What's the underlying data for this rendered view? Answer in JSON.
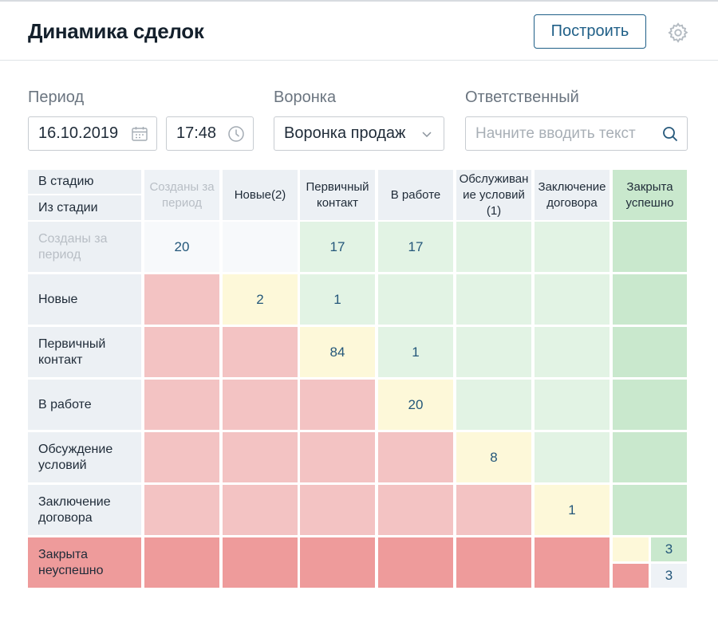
{
  "header": {
    "title": "Динамика сделок",
    "build_label": "Построить"
  },
  "filters": {
    "period_label": "Период",
    "date_value": "16.10.2019",
    "time_value": "17:48",
    "funnel_label": "Воронка",
    "funnel_value": "Воронка продаж",
    "responsible_label": "Ответственный",
    "responsible_placeholder": "Начните вводить текст"
  },
  "matrix": {
    "corner_top": "В стадию",
    "corner_bottom": "Из стадии",
    "columns": [
      "Созданы за период",
      "Новые(2)",
      "Первичный контакт",
      "В работе",
      "Обслуживан ие условий (1)",
      "Заключение договора",
      "Закрыта успешно"
    ],
    "rows": [
      {
        "label": "Созданы за период",
        "values": [
          "20",
          "",
          "17",
          "17",
          "",
          "",
          ""
        ]
      },
      {
        "label": "Новые",
        "values": [
          "",
          "2",
          "1",
          "",
          "",
          "",
          ""
        ]
      },
      {
        "label": "Первичный контакт",
        "values": [
          "",
          "",
          "84",
          "1",
          "",
          "",
          ""
        ]
      },
      {
        "label": "В работе",
        "values": [
          "",
          "",
          "",
          "20",
          "",
          "",
          ""
        ]
      },
      {
        "label": "Обсуждение условий",
        "values": [
          "",
          "",
          "",
          "",
          "8",
          "",
          ""
        ]
      },
      {
        "label": "Заключение договора",
        "values": [
          "",
          "",
          "",
          "",
          "",
          "1",
          ""
        ]
      },
      {
        "label": "Закрыта неуспешно",
        "values": [
          "",
          "",
          "",
          "",
          "",
          "",
          ""
        ]
      }
    ],
    "closed_success_top": "3",
    "closed_success_bottom": "3"
  },
  "colors": {
    "accent": "#1f5f87",
    "header_bg": "#ecf0f4",
    "green": "#e2f3e4",
    "green_strong": "#c9e8cd",
    "yellow": "#fdf8d9",
    "red": "#f3c3c3",
    "red_strong": "#ee9b9b"
  }
}
